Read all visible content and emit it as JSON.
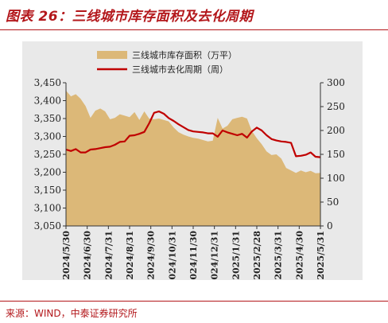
{
  "figure_title": "图表 26：三线城市库存面积及去化周期",
  "source_note": "来源：WIND，中泰证券研究所",
  "colors": {
    "accent": "#b3171b",
    "area_fill": "#dcb878",
    "line": "#c00000",
    "panel_bg": "#e9e9e9"
  },
  "chart_data": {
    "type": "area",
    "x_tick_labels": [
      "2024/5/30",
      "2024/6/30",
      "2024/7/31",
      "2024/8/31",
      "2024/9/30",
      "2024/10/31",
      "2024/11/30",
      "2024/12/31",
      "2025/1/31",
      "2025/2/28",
      "2025/3/31",
      "2025/4/30",
      "2025/5/31"
    ],
    "x": [
      "2024/5/30",
      "2024/6/2",
      "2024/6/9",
      "2024/6/16",
      "2024/6/23",
      "2024/6/30",
      "2024/7/7",
      "2024/7/14",
      "2024/7/21",
      "2024/7/28",
      "2024/8/4",
      "2024/8/11",
      "2024/8/18",
      "2024/8/25",
      "2024/9/1",
      "2024/9/8",
      "2024/9/15",
      "2024/9/22",
      "2024/9/29",
      "2024/10/6",
      "2024/10/13",
      "2024/10/20",
      "2024/10/27",
      "2024/11/3",
      "2024/11/10",
      "2024/11/17",
      "2024/11/24",
      "2024/12/1",
      "2024/12/8",
      "2024/12/15",
      "2024/12/22",
      "2024/12/29",
      "2025/1/5",
      "2025/1/12",
      "2025/1/19",
      "2025/1/26",
      "2025/2/2",
      "2025/2/9",
      "2025/2/16",
      "2025/2/23",
      "2025/3/2",
      "2025/3/9",
      "2025/3/16",
      "2025/3/23",
      "2025/3/30",
      "2025/4/6",
      "2025/4/13",
      "2025/4/20",
      "2025/4/27",
      "2025/5/4",
      "2025/5/11",
      "2025/5/18",
      "2025/5/22"
    ],
    "series": [
      {
        "name": "三线城市库存面积（万平）",
        "type": "area",
        "axis": "left",
        "color": "#dcb878",
        "values": [
          3428,
          3412,
          3418,
          3405,
          3385,
          3352,
          3372,
          3378,
          3370,
          3348,
          3352,
          3362,
          3358,
          3354,
          3368,
          3346,
          3370,
          3350,
          3348,
          3350,
          3346,
          3342,
          3325,
          3312,
          3305,
          3300,
          3296,
          3294,
          3290,
          3286,
          3288,
          3352,
          3322,
          3330,
          3348,
          3352,
          3355,
          3350,
          3315,
          3295,
          3278,
          3258,
          3248,
          3250,
          3238,
          3212,
          3205,
          3198,
          3205,
          3200,
          3204,
          3197,
          3198
        ]
      },
      {
        "name": "三线城市去化周期（周）",
        "type": "line",
        "axis": "right",
        "color": "#c00000",
        "values": [
          160,
          157,
          161,
          154,
          154,
          160,
          161,
          163,
          165,
          166,
          170,
          176,
          177,
          189,
          190,
          193,
          197,
          215,
          237,
          240,
          235,
          226,
          220,
          213,
          207,
          201,
          198,
          197,
          196,
          194,
          194,
          187,
          200,
          196,
          193,
          190,
          193,
          185,
          198,
          206,
          200,
          190,
          182,
          179,
          177,
          176,
          174,
          146,
          147,
          149,
          154,
          145,
          144
        ]
      }
    ],
    "y_left": {
      "min": 3050,
      "max": 3450,
      "ticks": [
        3050,
        3100,
        3150,
        3200,
        3250,
        3300,
        3350,
        3400,
        3450
      ]
    },
    "y_right": {
      "min": 0,
      "max": 300,
      "ticks": [
        0,
        50,
        100,
        150,
        200,
        250,
        300
      ]
    },
    "legend_position": "top-center",
    "grid": false
  }
}
